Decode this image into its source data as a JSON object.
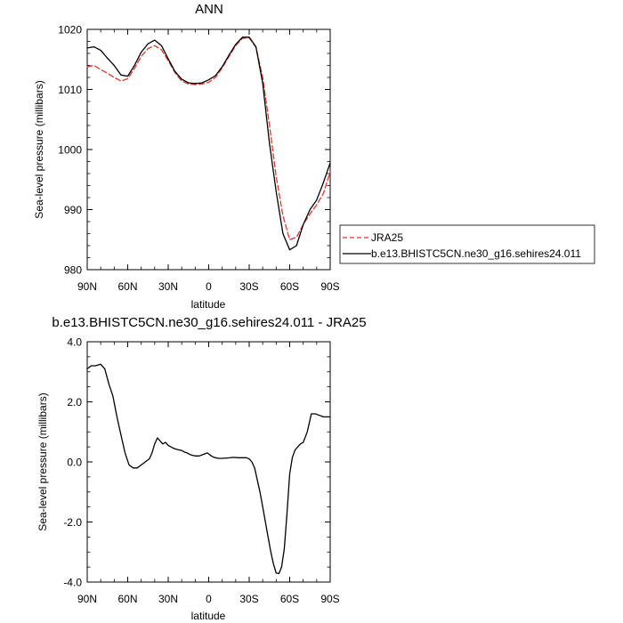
{
  "chart_data": [
    {
      "type": "line",
      "title": "ANN",
      "xlabel": "latitude",
      "ylabel": "Sea-level pressure (millibars)",
      "xlim": [
        90,
        -90
      ],
      "ylim": [
        980,
        1020
      ],
      "xticks": [
        90,
        60,
        30,
        0,
        -30,
        -60,
        -90
      ],
      "xtick_labels": [
        "90N",
        "60N",
        "30N",
        "0",
        "30S",
        "60S",
        "90S"
      ],
      "yticks": [
        980,
        990,
        1000,
        1010,
        1020
      ],
      "ytick_labels": [
        "980",
        "990",
        "1000",
        "1010",
        "1020"
      ],
      "legend_position": "right",
      "series": [
        {
          "name": "JRA25",
          "color": "#e8332f",
          "dash": "dashed",
          "x": [
            90,
            85,
            80,
            75,
            70,
            65,
            60,
            55,
            50,
            45,
            40,
            35,
            30,
            25,
            20,
            15,
            10,
            5,
            0,
            -5,
            -10,
            -15,
            -20,
            -25,
            -30,
            -35,
            -40,
            -45,
            -50,
            -55,
            -60,
            -65,
            -70,
            -75,
            -80,
            -85,
            -90
          ],
          "values": [
            1013.8,
            1014.0,
            1013.3,
            1012.7,
            1012.0,
            1011.4,
            1011.8,
            1013.5,
            1015.5,
            1016.8,
            1017.3,
            1016.6,
            1014.8,
            1012.8,
            1011.4,
            1010.9,
            1010.8,
            1010.9,
            1011.2,
            1012.0,
            1013.6,
            1015.5,
            1017.3,
            1018.5,
            1018.6,
            1017.0,
            1012.0,
            1004.0,
            995.5,
            989.0,
            985.0,
            985.4,
            987.5,
            989.3,
            990.8,
            992.7,
            996.3
          ]
        },
        {
          "name": "b.e13.BHISTC5CN.ne30_g16.sehires24.011",
          "color": "#000000",
          "dash": "solid",
          "x": [
            90,
            85,
            80,
            75,
            70,
            65,
            60,
            55,
            50,
            45,
            40,
            35,
            30,
            25,
            20,
            15,
            10,
            5,
            0,
            -5,
            -10,
            -15,
            -20,
            -25,
            -30,
            -35,
            -40,
            -45,
            -50,
            -55,
            -60,
            -65,
            -70,
            -75,
            -80,
            -85,
            -90
          ],
          "values": [
            1016.9,
            1017.1,
            1016.5,
            1015.2,
            1014.0,
            1012.4,
            1012.2,
            1014.0,
            1016.2,
            1017.6,
            1018.2,
            1017.3,
            1015.1,
            1013.0,
            1011.7,
            1011.1,
            1011.0,
            1011.1,
            1011.6,
            1012.3,
            1013.8,
            1015.7,
            1017.5,
            1018.7,
            1018.7,
            1017.1,
            1011.0,
            1001.0,
            993.0,
            986.0,
            983.3,
            984.0,
            987.5,
            990.0,
            991.6,
            994.5,
            997.8
          ]
        }
      ]
    },
    {
      "type": "line",
      "title": "b.e13.BHISTC5CN.ne30_g16.sehires24.011 - JRA25",
      "xlabel": "latitude",
      "ylabel": "Sea-level pressure (millibars)",
      "xlim": [
        90,
        -90
      ],
      "ylim": [
        -4,
        4
      ],
      "xticks": [
        90,
        60,
        30,
        0,
        -30,
        -60,
        -90
      ],
      "xtick_labels": [
        "90N",
        "60N",
        "30N",
        "0",
        "30S",
        "60S",
        "90S"
      ],
      "yticks": [
        -4,
        -2,
        0,
        2,
        4
      ],
      "ytick_labels": [
        "-4.0",
        "-2.0",
        "0.0",
        "2.0",
        "4.0"
      ],
      "series": [
        {
          "color": "#000000",
          "dash": "solid",
          "x": [
            90,
            87,
            84,
            80,
            77,
            74,
            71,
            68,
            65,
            62,
            59,
            56,
            53,
            50,
            47,
            44,
            42,
            40,
            38,
            36,
            34,
            32,
            30,
            28,
            26,
            24,
            22,
            20,
            18,
            16,
            14,
            12,
            10,
            7,
            4,
            1,
            -2,
            -4,
            -7,
            -10,
            -14,
            -18,
            -22,
            -25,
            -28,
            -30,
            -32,
            -34,
            -36,
            -38,
            -40,
            -42,
            -44,
            -46,
            -48,
            -50,
            -52,
            -54,
            -56,
            -58,
            -60,
            -62,
            -64,
            -66,
            -68,
            -70,
            -73,
            -76,
            -79,
            -82,
            -85,
            -88,
            -90
          ],
          "values": [
            3.1,
            3.2,
            3.2,
            3.25,
            3.1,
            2.6,
            2.2,
            1.5,
            0.9,
            0.3,
            -0.1,
            -0.2,
            -0.2,
            -0.1,
            0.0,
            0.1,
            0.3,
            0.6,
            0.8,
            0.7,
            0.6,
            0.65,
            0.55,
            0.5,
            0.45,
            0.42,
            0.4,
            0.38,
            0.33,
            0.3,
            0.25,
            0.22,
            0.2,
            0.2,
            0.25,
            0.3,
            0.2,
            0.15,
            0.12,
            0.12,
            0.13,
            0.15,
            0.14,
            0.14,
            0.14,
            0.1,
            0.0,
            -0.2,
            -0.6,
            -1.0,
            -1.5,
            -2.0,
            -2.5,
            -3.0,
            -3.4,
            -3.7,
            -3.72,
            -3.5,
            -2.9,
            -1.7,
            -0.4,
            0.15,
            0.4,
            0.5,
            0.6,
            0.65,
            1.0,
            1.6,
            1.6,
            1.55,
            1.5,
            1.5,
            1.5
          ]
        }
      ]
    }
  ]
}
